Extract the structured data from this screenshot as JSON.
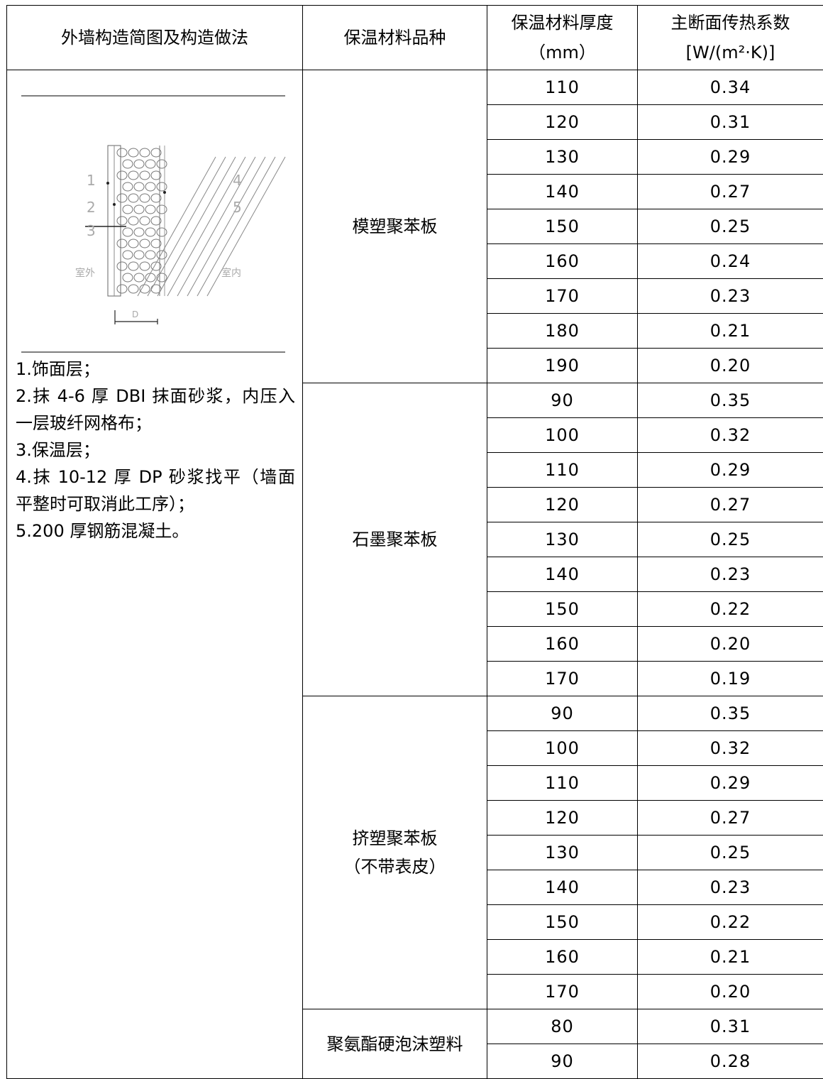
{
  "header": {
    "col1": "外墙构造简图及构造做法",
    "col2": "保温材料品种",
    "col3_line1": "保温材料厚度",
    "col3_line2": "（mm）",
    "col4_line1": "主断面传热系数",
    "col4_line2": "[W/(m²·K)]"
  },
  "diagram": {
    "labels": [
      "1",
      "2",
      "3",
      "4",
      "5",
      "室外",
      "室内",
      "D"
    ]
  },
  "notes": [
    "1.饰面层；",
    "2.抹 4-6 厚 DBI 抹面砂浆，内压入一层玻纤网格布；",
    "3.保温层；",
    "4.抹 10-12 厚 DP 砂浆找平（墙面平整时可取消此工序）；",
    "5.200 厚钢筋混凝土。"
  ],
  "materials": [
    {
      "name": "模塑聚苯板",
      "name_line2": "",
      "rows": [
        {
          "thickness": "110",
          "k": "0.34"
        },
        {
          "thickness": "120",
          "k": "0.31"
        },
        {
          "thickness": "130",
          "k": "0.29"
        },
        {
          "thickness": "140",
          "k": "0.27"
        },
        {
          "thickness": "150",
          "k": "0.25"
        },
        {
          "thickness": "160",
          "k": "0.24"
        },
        {
          "thickness": "170",
          "k": "0.23"
        },
        {
          "thickness": "180",
          "k": "0.21"
        },
        {
          "thickness": "190",
          "k": "0.20"
        }
      ]
    },
    {
      "name": "石墨聚苯板",
      "name_line2": "",
      "rows": [
        {
          "thickness": "90",
          "k": "0.35"
        },
        {
          "thickness": "100",
          "k": "0.32"
        },
        {
          "thickness": "110",
          "k": "0.29"
        },
        {
          "thickness": "120",
          "k": "0.27"
        },
        {
          "thickness": "130",
          "k": "0.25"
        },
        {
          "thickness": "140",
          "k": "0.23"
        },
        {
          "thickness": "150",
          "k": "0.22"
        },
        {
          "thickness": "160",
          "k": "0.20"
        },
        {
          "thickness": "170",
          "k": "0.19"
        }
      ]
    },
    {
      "name": "挤塑聚苯板",
      "name_line2": "（不带表皮）",
      "rows": [
        {
          "thickness": "90",
          "k": "0.35"
        },
        {
          "thickness": "100",
          "k": "0.32"
        },
        {
          "thickness": "110",
          "k": "0.29"
        },
        {
          "thickness": "120",
          "k": "0.27"
        },
        {
          "thickness": "130",
          "k": "0.25"
        },
        {
          "thickness": "140",
          "k": "0.23"
        },
        {
          "thickness": "150",
          "k": "0.22"
        },
        {
          "thickness": "160",
          "k": "0.21"
        },
        {
          "thickness": "170",
          "k": "0.20"
        }
      ]
    },
    {
      "name": "聚氨酯硬泡沫塑料",
      "name_line2": "",
      "rows": [
        {
          "thickness": "80",
          "k": "0.31"
        },
        {
          "thickness": "90",
          "k": "0.28"
        }
      ]
    }
  ]
}
